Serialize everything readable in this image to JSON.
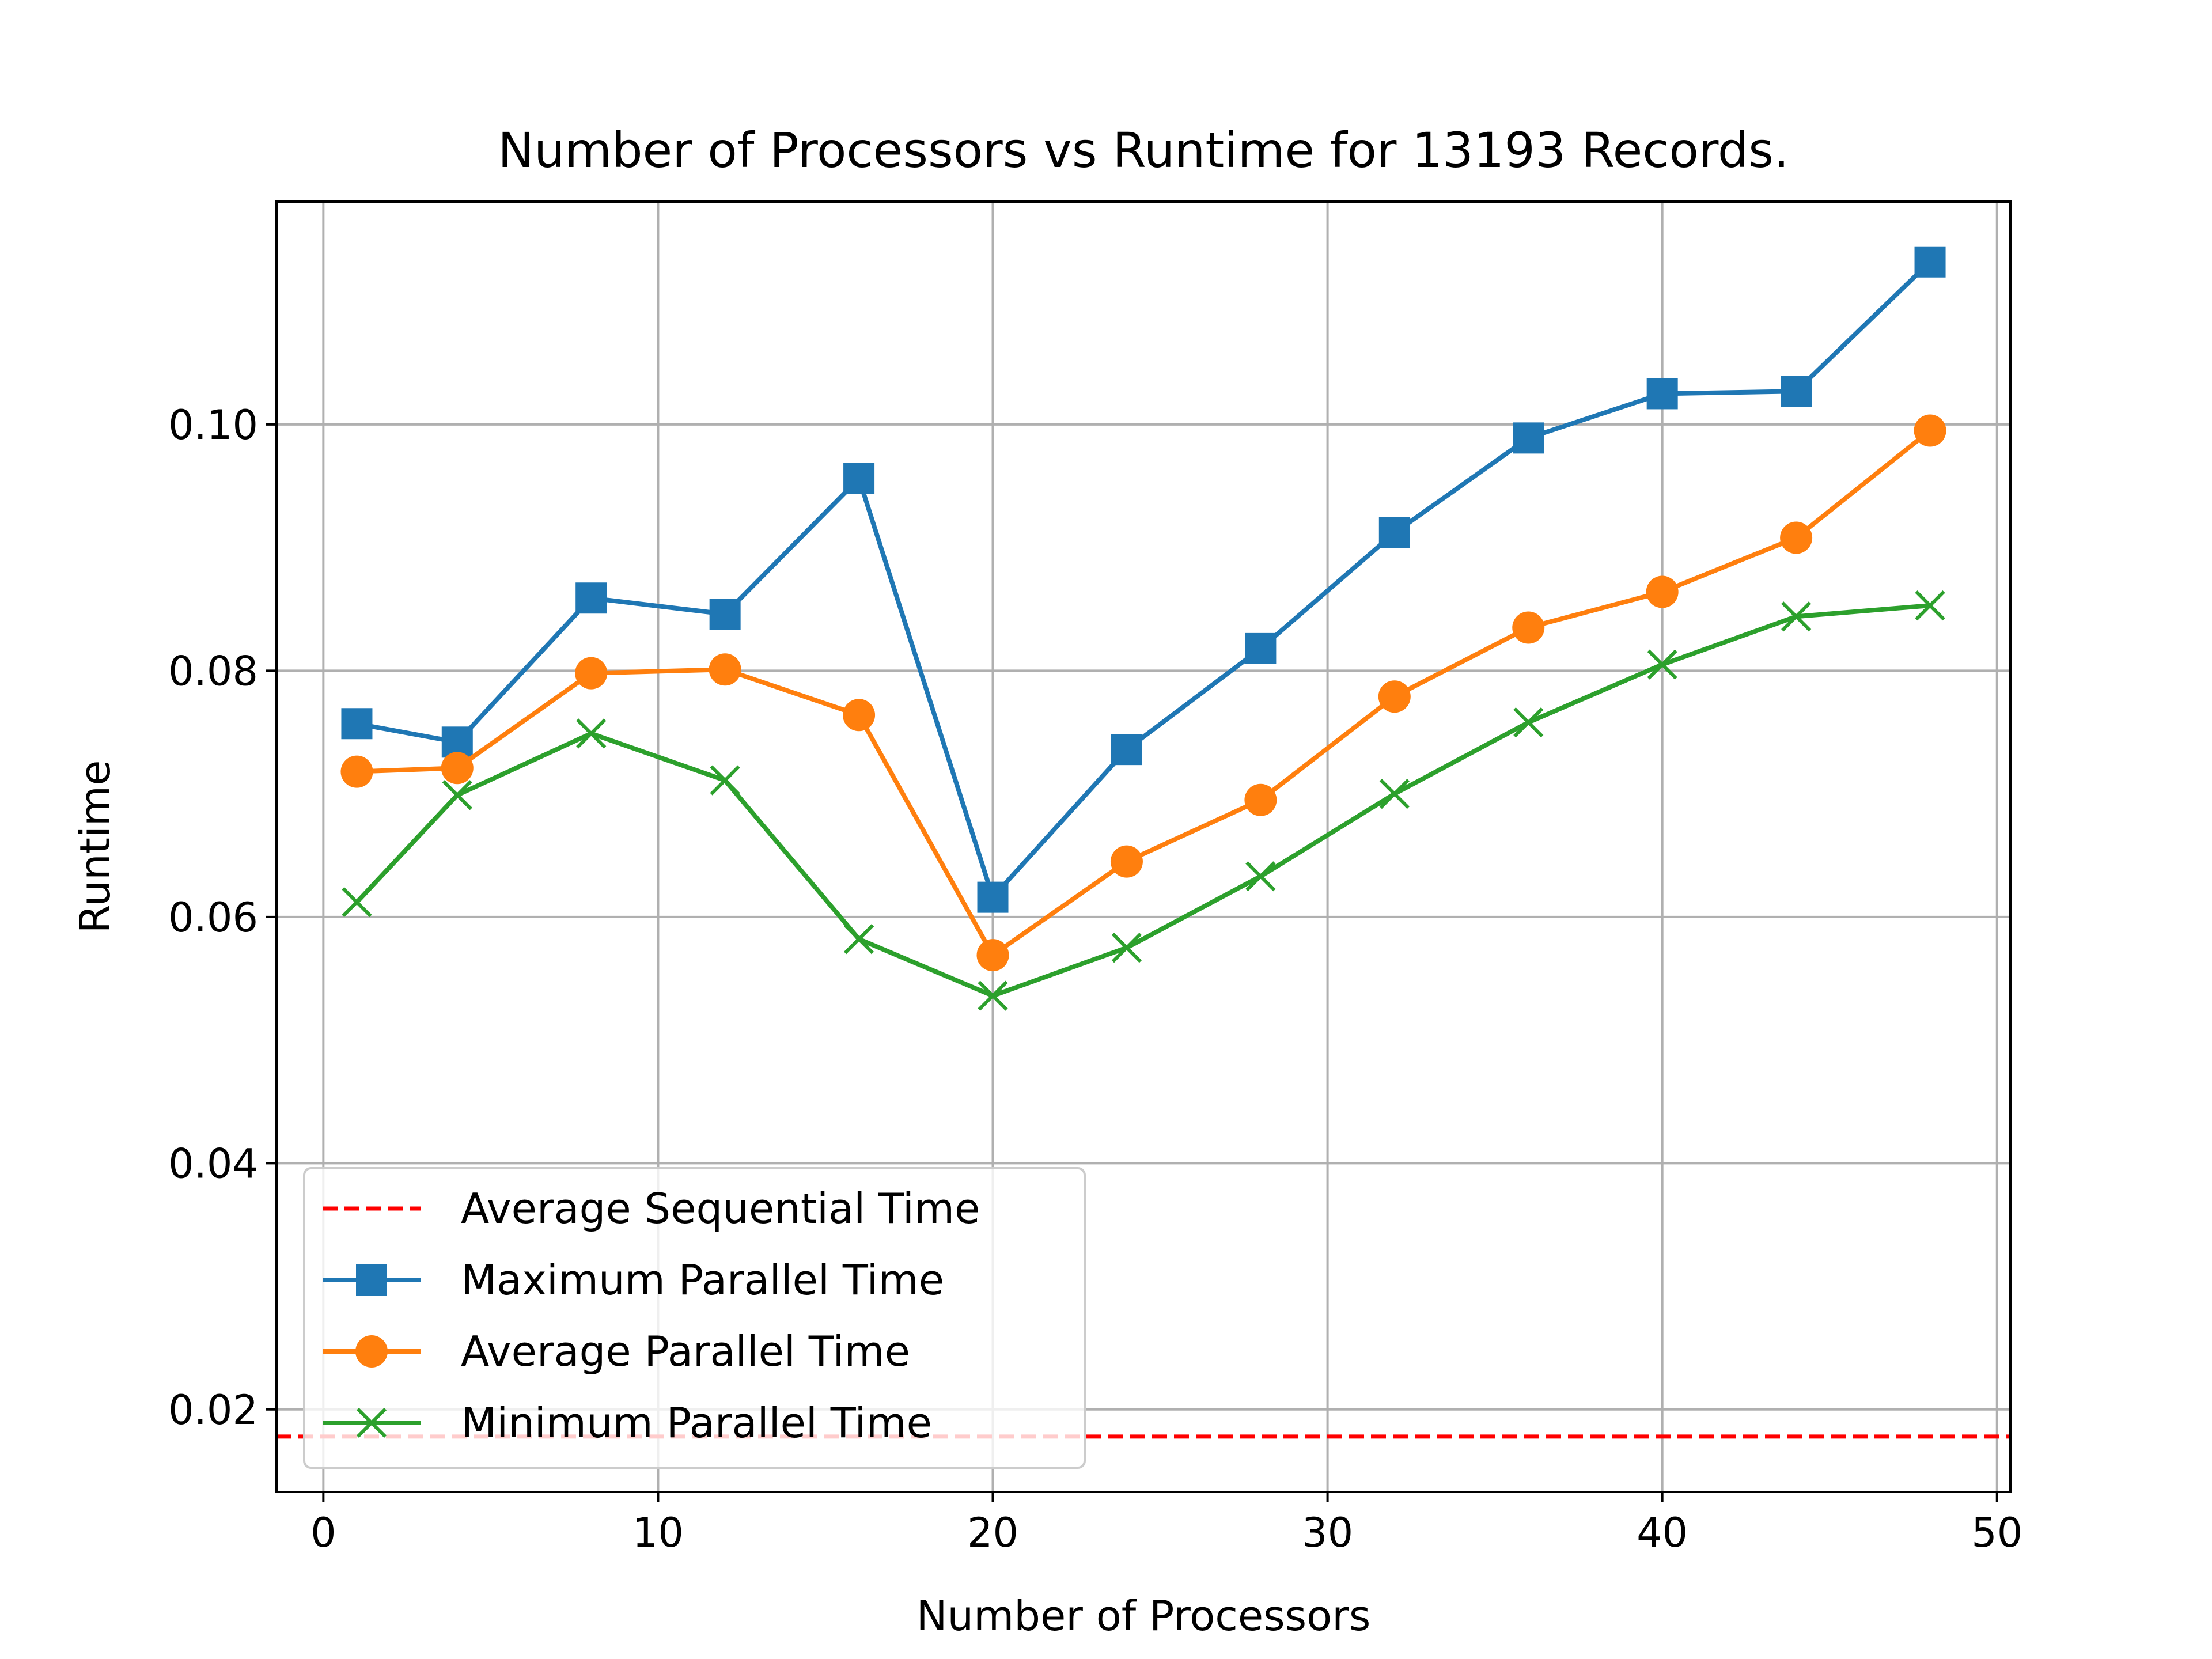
{
  "chart_data": {
    "type": "line",
    "title": "Number of Processors vs Runtime for 13193 Records.",
    "xlabel": "Number of Processors",
    "ylabel": "Runtime",
    "xlim": [
      -1.4,
      50.4
    ],
    "ylim": [
      0.0133,
      0.1181
    ],
    "xticks": [
      0,
      10,
      20,
      30,
      40,
      50
    ],
    "xtick_labels": [
      "0",
      "10",
      "20",
      "30",
      "40",
      "50"
    ],
    "yticks": [
      0.02,
      0.04,
      0.06,
      0.08,
      0.1
    ],
    "ytick_labels": [
      "0.02",
      "0.04",
      "0.06",
      "0.08",
      "0.10"
    ],
    "grid": true,
    "legend_position": "lower-left",
    "x": [
      1,
      4,
      8,
      12,
      16,
      20,
      24,
      28,
      32,
      36,
      40,
      44,
      48
    ],
    "reference_line": {
      "name": "Average Sequential Time",
      "y": 0.0178,
      "color": "#ff0000",
      "style": "dashed"
    },
    "series": [
      {
        "name": "Maximum Parallel Time",
        "color": "#1f77b4",
        "marker": "square",
        "values": [
          0.0757,
          0.0742,
          0.0859,
          0.0846,
          0.0956,
          0.0616,
          0.0736,
          0.0818,
          0.0912,
          0.0989,
          0.1025,
          0.1027,
          0.1132
        ]
      },
      {
        "name": "Average Parallel Time",
        "color": "#ff7f0e",
        "marker": "circle",
        "values": [
          0.0718,
          0.0721,
          0.0798,
          0.0801,
          0.0764,
          0.0569,
          0.0645,
          0.0695,
          0.0779,
          0.0835,
          0.0864,
          0.0908,
          0.0995
        ]
      },
      {
        "name": "Minimum Parallel Time",
        "color": "#2ca02c",
        "marker": "x",
        "values": [
          0.0612,
          0.0699,
          0.0749,
          0.0711,
          0.0582,
          0.0536,
          0.0575,
          0.0633,
          0.07,
          0.0758,
          0.0805,
          0.0844,
          0.0853
        ]
      }
    ]
  }
}
